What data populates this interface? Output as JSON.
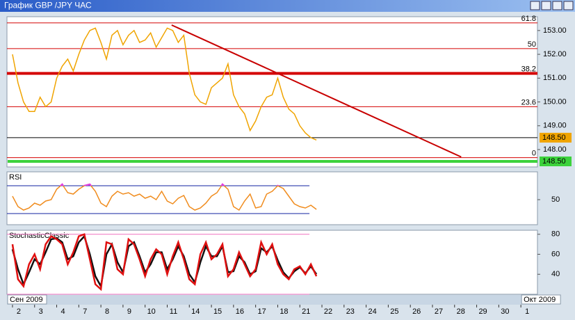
{
  "window": {
    "title": "График GBP /JPY  ЧАС"
  },
  "chart_data": [
    {
      "type": "line",
      "x": [
        0,
        0.25,
        0.5,
        0.75,
        1,
        1.25,
        1.5,
        1.75,
        2,
        2.25,
        2.5,
        2.75,
        3,
        3.25,
        3.5,
        3.75,
        4,
        4.25,
        4.5,
        4.75,
        5,
        5.25,
        5.5,
        5.75,
        6,
        6.25,
        6.5,
        6.75,
        7,
        7.25,
        7.5,
        7.75,
        8,
        8.25,
        8.5,
        8.75,
        9,
        9.25,
        9.5,
        9.75,
        10,
        10.25,
        10.5,
        10.75,
        11,
        11.25,
        11.5,
        11.75,
        12,
        12.25,
        12.5,
        12.75,
        13,
        13.25,
        13.5,
        13.75
      ],
      "series": [
        {
          "color": "#f0a400",
          "values": [
            152.0,
            150.8,
            150.0,
            149.6,
            149.6,
            150.2,
            149.8,
            150.0,
            151.0,
            151.5,
            151.8,
            151.3,
            152.0,
            152.6,
            153.0,
            153.1,
            152.5,
            151.8,
            152.8,
            153.0,
            152.4,
            152.8,
            153.0,
            152.5,
            152.6,
            152.9,
            152.3,
            152.7,
            153.1,
            153.0,
            152.5,
            152.8,
            151.2,
            150.3,
            150.0,
            149.9,
            150.6,
            150.8,
            151.0,
            151.6,
            150.3,
            149.8,
            149.5,
            148.8,
            149.2,
            149.8,
            150.2,
            150.3,
            151.0,
            150.2,
            149.7,
            149.5,
            149.0,
            148.7,
            148.5,
            148.4
          ]
        }
      ],
      "xlim": [
        -0.25,
        23.75
      ],
      "ylim": [
        147.27,
        153.58
      ],
      "yticks": [
        {
          "value": 153,
          "label": "153.00"
        },
        {
          "value": 152,
          "label": "152.00"
        },
        {
          "value": 151,
          "label": "151.00"
        },
        {
          "value": 150,
          "label": "150.00"
        },
        {
          "value": 149,
          "label": "149.00"
        },
        {
          "value": 148,
          "label": "148.00"
        }
      ],
      "levels": [
        {
          "value": 153.32,
          "label": "61.8"
        },
        {
          "value": 152.24,
          "label": "50"
        },
        {
          "value": 151.2,
          "label": "38.2"
        },
        {
          "value": 149.8,
          "label": "23.6"
        },
        {
          "value": 147.66,
          "label": "0"
        }
      ],
      "level_color": "#d40000",
      "trend_line": {
        "x": [
          7.2,
          20.3
        ],
        "values": [
          153.23,
          147.69
        ],
        "color": "#c80000"
      },
      "price_line": {
        "value": 148.5,
        "label": "148.50",
        "color": "#f0a400"
      },
      "ask_tag": {
        "label": "148.50",
        "color": "#3cd23c"
      },
      "xticks": [
        {
          "value": 0,
          "label": "2"
        },
        {
          "value": 1,
          "label": "3"
        },
        {
          "value": 2,
          "label": "4"
        },
        {
          "value": 3,
          "label": "7"
        },
        {
          "value": 4,
          "label": "8"
        },
        {
          "value": 5,
          "label": "9"
        },
        {
          "value": 6,
          "label": "10"
        },
        {
          "value": 7,
          "label": "11"
        },
        {
          "value": 8,
          "label": "14"
        },
        {
          "value": 9,
          "label": "15"
        },
        {
          "value": 10,
          "label": "16"
        },
        {
          "value": 11,
          "label": "17"
        },
        {
          "value": 12,
          "label": "18"
        },
        {
          "value": 13,
          "label": "21"
        },
        {
          "value": 14,
          "label": "22"
        },
        {
          "value": 15,
          "label": "23"
        },
        {
          "value": 16,
          "label": "24"
        },
        {
          "value": 17,
          "label": "25"
        },
        {
          "value": 18,
          "label": "26"
        },
        {
          "value": 19,
          "label": "27"
        },
        {
          "value": 20,
          "label": "28"
        },
        {
          "value": 21,
          "label": "29"
        },
        {
          "value": 22,
          "label": "30"
        },
        {
          "value": 23,
          "label": "1"
        }
      ],
      "month_labels": [
        {
          "value": -0.25,
          "label": "Сен 2009"
        },
        {
          "value": 23,
          "label": "Окт 2009"
        }
      ]
    },
    {
      "type": "line",
      "title": "RSI",
      "series": [
        {
          "color": "#f08c1e",
          "values": [
            55,
            40,
            35,
            38,
            45,
            42,
            48,
            50,
            65,
            72,
            60,
            58,
            65,
            70,
            72,
            62,
            45,
            40,
            55,
            62,
            58,
            60,
            55,
            58,
            52,
            55,
            50,
            62,
            48,
            44,
            52,
            56,
            40,
            35,
            38,
            45,
            55,
            60,
            72,
            65,
            40,
            35,
            48,
            58,
            38,
            40,
            58,
            62,
            70,
            66,
            55,
            44,
            40,
            38,
            42,
            36
          ]
        }
      ],
      "ylim": [
        14,
        90
      ],
      "yticks": [
        50
      ],
      "levels": [
        70,
        30
      ],
      "level_color": "#1020a0",
      "high_color": "#e040e0",
      "low_color": "#40d020"
    },
    {
      "type": "line",
      "title": "StochasticClassic",
      "series": [
        {
          "color": "#101010",
          "values": [
            65,
            45,
            30,
            42,
            55,
            50,
            62,
            75,
            76,
            72,
            55,
            58,
            72,
            78,
            60,
            38,
            28,
            60,
            70,
            52,
            42,
            68,
            72,
            58,
            42,
            50,
            62,
            62,
            45,
            55,
            68,
            58,
            40,
            32,
            52,
            68,
            58,
            58,
            68,
            42,
            43,
            58,
            52,
            40,
            43,
            66,
            62,
            68,
            54,
            42,
            36,
            43,
            47,
            41,
            48,
            40
          ]
        },
        {
          "color": "#e01010",
          "values": [
            70,
            35,
            28,
            50,
            60,
            45,
            70,
            78,
            75,
            70,
            50,
            62,
            78,
            80,
            55,
            30,
            25,
            72,
            70,
            45,
            40,
            75,
            70,
            55,
            38,
            55,
            65,
            60,
            40,
            58,
            72,
            55,
            35,
            30,
            60,
            72,
            55,
            60,
            70,
            38,
            45,
            62,
            50,
            38,
            45,
            72,
            60,
            70,
            50,
            40,
            35,
            45,
            48,
            40,
            50,
            38
          ]
        }
      ],
      "ylim": [
        20,
        84
      ],
      "yticks": [
        40,
        60,
        80
      ],
      "levels": [
        80,
        20
      ],
      "level_color": "#f070c0"
    }
  ]
}
